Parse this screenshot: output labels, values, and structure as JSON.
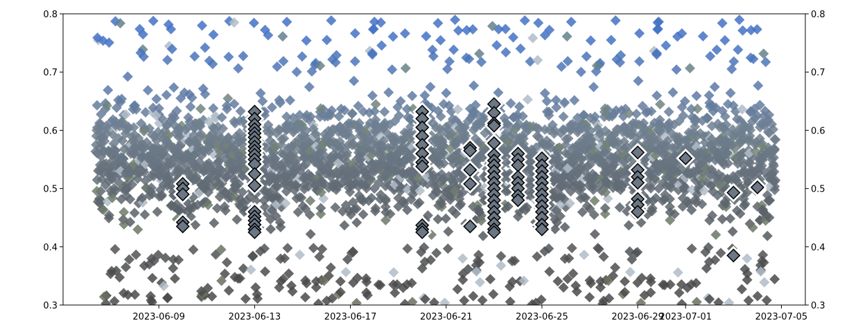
{
  "chart_data": {
    "type": "scatter",
    "title": "",
    "xlabel": "",
    "ylabel": "",
    "marker": "diamond",
    "x_axis": {
      "type": "date",
      "range": [
        "2023-06-05",
        "2023-07-06"
      ],
      "ticks": [
        "2023-06-09",
        "2023-06-13",
        "2023-06-17",
        "2023-06-21",
        "2023-06-25",
        "2023-06-29",
        "2023-07-01",
        "2023-07-05"
      ]
    },
    "y_axis": {
      "range": [
        0.3,
        0.8
      ],
      "ticks": [
        "0.3",
        "0.4",
        "0.5",
        "0.6",
        "0.7",
        "0.8"
      ],
      "mirrored_right": true
    },
    "grid": false,
    "legend": "none",
    "background_cloud": {
      "description_colors": [
        "#4472c4",
        "#5a7aa8",
        "#708090",
        "#7a8a6a",
        "#4a4a4a",
        "#b0bcc8"
      ],
      "y_min": 0.3,
      "y_max": 0.8,
      "dense_core": [
        0.4,
        0.7
      ]
    },
    "highlighted_series": {
      "fill": "#6b7785",
      "edge": "#000000",
      "halo": "#ffffff",
      "points": [
        [
          "2023-06-10",
          0.508
        ],
        [
          "2023-06-10",
          0.5
        ],
        [
          "2023-06-10",
          0.49
        ],
        [
          "2023-06-10",
          0.442
        ],
        [
          "2023-06-10",
          0.435
        ],
        [
          "2023-06-13",
          0.632
        ],
        [
          "2023-06-13",
          0.62
        ],
        [
          "2023-06-13",
          0.61
        ],
        [
          "2023-06-13",
          0.602
        ],
        [
          "2023-06-13",
          0.595
        ],
        [
          "2023-06-13",
          0.588
        ],
        [
          "2023-06-13",
          0.58
        ],
        [
          "2023-06-13",
          0.572
        ],
        [
          "2023-06-13",
          0.565
        ],
        [
          "2023-06-13",
          0.558
        ],
        [
          "2023-06-13",
          0.55
        ],
        [
          "2023-06-13",
          0.542
        ],
        [
          "2023-06-13",
          0.525
        ],
        [
          "2023-06-13",
          0.505
        ],
        [
          "2023-06-13",
          0.46
        ],
        [
          "2023-06-13",
          0.452
        ],
        [
          "2023-06-13",
          0.445
        ],
        [
          "2023-06-13",
          0.438
        ],
        [
          "2023-06-13",
          0.43
        ],
        [
          "2023-06-13",
          0.425
        ],
        [
          "2023-06-20",
          0.632
        ],
        [
          "2023-06-20",
          0.62
        ],
        [
          "2023-06-20",
          0.605
        ],
        [
          "2023-06-20",
          0.59
        ],
        [
          "2023-06-20",
          0.575
        ],
        [
          "2023-06-20",
          0.56
        ],
        [
          "2023-06-20",
          0.545
        ],
        [
          "2023-06-20",
          0.538
        ],
        [
          "2023-06-20",
          0.437
        ],
        [
          "2023-06-20",
          0.43
        ],
        [
          "2023-06-20",
          0.425
        ],
        [
          "2023-06-22",
          0.57
        ],
        [
          "2023-06-22",
          0.565
        ],
        [
          "2023-06-22",
          0.532
        ],
        [
          "2023-06-22",
          0.508
        ],
        [
          "2023-06-22",
          0.435
        ],
        [
          "2023-06-23",
          0.645
        ],
        [
          "2023-06-23",
          0.63
        ],
        [
          "2023-06-23",
          0.612
        ],
        [
          "2023-06-23",
          0.608
        ],
        [
          "2023-06-23",
          0.578
        ],
        [
          "2023-06-23",
          0.558
        ],
        [
          "2023-06-23",
          0.548
        ],
        [
          "2023-06-23",
          0.54
        ],
        [
          "2023-06-23",
          0.53
        ],
        [
          "2023-06-23",
          0.52
        ],
        [
          "2023-06-23",
          0.51
        ],
        [
          "2023-06-23",
          0.5
        ],
        [
          "2023-06-23",
          0.49
        ],
        [
          "2023-06-23",
          0.48
        ],
        [
          "2023-06-23",
          0.47
        ],
        [
          "2023-06-23",
          0.46
        ],
        [
          "2023-06-23",
          0.45
        ],
        [
          "2023-06-23",
          0.44
        ],
        [
          "2023-06-23",
          0.43
        ],
        [
          "2023-06-23",
          0.425
        ],
        [
          "2023-06-24",
          0.56
        ],
        [
          "2023-06-24",
          0.55
        ],
        [
          "2023-06-24",
          0.54
        ],
        [
          "2023-06-24",
          0.52
        ],
        [
          "2023-06-24",
          0.51
        ],
        [
          "2023-06-24",
          0.5
        ],
        [
          "2023-06-24",
          0.488
        ],
        [
          "2023-06-24",
          0.48
        ],
        [
          "2023-06-25",
          0.552
        ],
        [
          "2023-06-25",
          0.54
        ],
        [
          "2023-06-25",
          0.53
        ],
        [
          "2023-06-25",
          0.52
        ],
        [
          "2023-06-25",
          0.51
        ],
        [
          "2023-06-25",
          0.5
        ],
        [
          "2023-06-25",
          0.49
        ],
        [
          "2023-06-25",
          0.48
        ],
        [
          "2023-06-25",
          0.47
        ],
        [
          "2023-06-25",
          0.46
        ],
        [
          "2023-06-25",
          0.45
        ],
        [
          "2023-06-25",
          0.438
        ],
        [
          "2023-06-25",
          0.43
        ],
        [
          "2023-06-29",
          0.562
        ],
        [
          "2023-06-29",
          0.532
        ],
        [
          "2023-06-29",
          0.52
        ],
        [
          "2023-06-29",
          0.51
        ],
        [
          "2023-06-29",
          0.482
        ],
        [
          "2023-06-29",
          0.472
        ],
        [
          "2023-06-29",
          0.46
        ],
        [
          "2023-07-01",
          0.552
        ],
        [
          "2023-07-03",
          0.493
        ],
        [
          "2023-07-03",
          0.385
        ],
        [
          "2023-07-04",
          0.502
        ]
      ]
    }
  }
}
